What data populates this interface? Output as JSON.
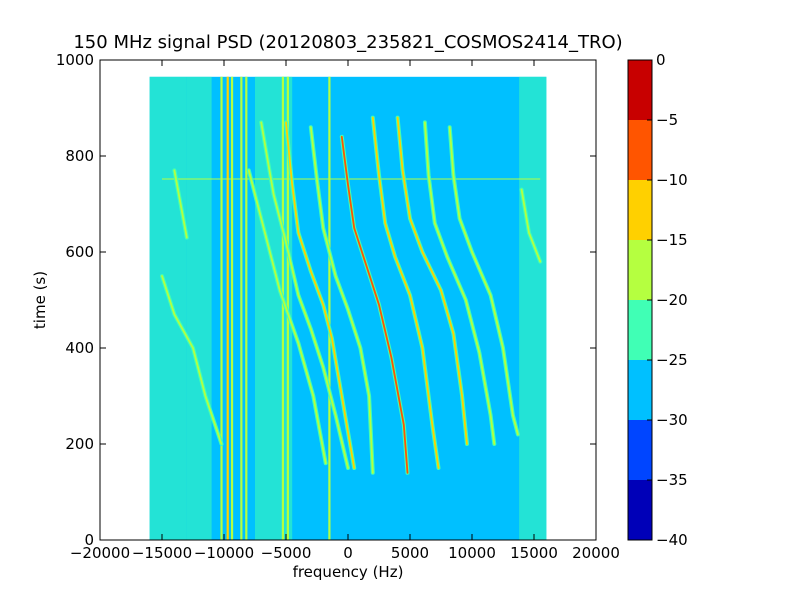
{
  "chart_data": {
    "type": "heatmap",
    "title": "150 MHz signal PSD (20120803_235821_COSMOS2414_TRO)",
    "xlabel": "frequency (Hz)",
    "ylabel": "time (s)",
    "xlim": [
      -20000,
      20000
    ],
    "ylim": [
      0,
      1000
    ],
    "x_ticks": [
      -20000,
      -15000,
      -10000,
      -5000,
      0,
      5000,
      10000,
      15000,
      20000
    ],
    "x_tick_labels": [
      "−20000",
      "−15000",
      "−10000",
      "−5000",
      "0",
      "5000",
      "10000",
      "15000",
      "20000"
    ],
    "y_ticks": [
      0,
      200,
      400,
      600,
      800,
      1000
    ],
    "y_tick_labels": [
      "0",
      "200",
      "400",
      "600",
      "800",
      "1000"
    ],
    "data_extent": {
      "x": [
        -16000,
        16000
      ],
      "y": [
        0,
        965
      ]
    },
    "background_level": -27.5,
    "edge_noise_bands": [
      {
        "x": [
          -16000,
          -13000
        ],
        "level": -22.5
      },
      {
        "x": [
          -13000,
          -11000
        ],
        "level": -24.5
      },
      {
        "x": [
          -7500,
          -4500
        ],
        "level": -24.5
      },
      {
        "x": [
          13800,
          16000
        ],
        "level": -22.5
      }
    ],
    "vertical_lines": [
      {
        "x": -10200,
        "level": -17.5
      },
      {
        "x": -9700,
        "level": -12.5
      },
      {
        "x": -9350,
        "level": -17.5
      },
      {
        "x": -8600,
        "level": -17.5
      },
      {
        "x": -8200,
        "level": -17.5
      },
      {
        "x": -5250,
        "level": -17.5
      },
      {
        "x": -4850,
        "level": -17.5
      },
      {
        "x": -1500,
        "level": -17.5
      }
    ],
    "horizontal_lines": [
      {
        "y": 752,
        "x": [
          -15000,
          15500
        ],
        "level": -17.5
      }
    ],
    "doppler_tracks": [
      {
        "points": [
          [
            -14000,
            770
          ],
          [
            -13000,
            630
          ]
        ],
        "level": -17.5
      },
      {
        "points": [
          [
            -15000,
            550
          ],
          [
            -14000,
            470
          ],
          [
            -12500,
            400
          ],
          [
            -11500,
            300
          ],
          [
            -10200,
            200
          ]
        ],
        "level": -17.5
      },
      {
        "points": [
          [
            -8000,
            770
          ],
          [
            -6500,
            620
          ],
          [
            -5500,
            520
          ],
          [
            -4000,
            410
          ],
          [
            -2800,
            300
          ],
          [
            -1800,
            160
          ]
        ],
        "level": -17.5
      },
      {
        "points": [
          [
            -7000,
            870
          ],
          [
            -6000,
            720
          ],
          [
            -5000,
            620
          ],
          [
            -4000,
            510
          ],
          [
            -3000,
            440
          ],
          [
            -2000,
            360
          ],
          [
            -1000,
            260
          ],
          [
            0,
            150
          ]
        ],
        "level": -17.5
      },
      {
        "points": [
          [
            -5000,
            870
          ],
          [
            -4500,
            740
          ],
          [
            -4000,
            640
          ],
          [
            -3000,
            560
          ],
          [
            -2000,
            490
          ],
          [
            -1300,
            420
          ],
          [
            -500,
            300
          ],
          [
            500,
            150
          ]
        ],
        "level": -12.5
      },
      {
        "points": [
          [
            -3000,
            860
          ],
          [
            -2500,
            750
          ],
          [
            -2000,
            650
          ],
          [
            -1000,
            550
          ],
          [
            0,
            480
          ],
          [
            1000,
            400
          ],
          [
            1700,
            300
          ],
          [
            2000,
            140
          ]
        ],
        "level": -17.5
      },
      {
        "points": [
          [
            -500,
            840
          ],
          [
            0,
            740
          ],
          [
            500,
            650
          ],
          [
            1500,
            570
          ],
          [
            2500,
            490
          ],
          [
            3500,
            380
          ],
          [
            4500,
            240
          ],
          [
            4800,
            140
          ]
        ],
        "level": -7.5
      },
      {
        "points": [
          [
            2000,
            880
          ],
          [
            2500,
            760
          ],
          [
            3000,
            660
          ],
          [
            3800,
            590
          ],
          [
            5000,
            510
          ],
          [
            6000,
            400
          ],
          [
            6800,
            240
          ],
          [
            7300,
            150
          ]
        ],
        "level": -12.5
      },
      {
        "points": [
          [
            4000,
            880
          ],
          [
            4400,
            770
          ],
          [
            5000,
            670
          ],
          [
            6000,
            600
          ],
          [
            7500,
            520
          ],
          [
            8500,
            430
          ],
          [
            9200,
            300
          ],
          [
            9600,
            200
          ]
        ],
        "level": -12.5
      },
      {
        "points": [
          [
            6200,
            870
          ],
          [
            6500,
            760
          ],
          [
            7000,
            660
          ],
          [
            8000,
            590
          ],
          [
            9500,
            500
          ],
          [
            10600,
            390
          ],
          [
            11500,
            260
          ],
          [
            11800,
            200
          ]
        ],
        "level": -17.5
      },
      {
        "points": [
          [
            8200,
            860
          ],
          [
            8500,
            760
          ],
          [
            9000,
            670
          ],
          [
            10000,
            600
          ],
          [
            11500,
            510
          ],
          [
            12500,
            400
          ],
          [
            13300,
            260
          ],
          [
            13700,
            220
          ]
        ],
        "level": -17.5
      },
      {
        "points": [
          [
            14000,
            730
          ],
          [
            14600,
            640
          ],
          [
            15500,
            580
          ]
        ],
        "level": -17.5
      }
    ],
    "colorbar": {
      "range": [
        -40,
        0
      ],
      "ticks": [
        0,
        -5,
        -10,
        -15,
        -20,
        -25,
        -30,
        -35,
        -40
      ],
      "tick_labels": [
        "0",
        "−5",
        "−10",
        "−15",
        "−20",
        "−25",
        "−30",
        "−35",
        "−40"
      ],
      "levels": [
        {
          "from": -40,
          "to": -35,
          "color": "#0000b8"
        },
        {
          "from": -35,
          "to": -30,
          "color": "#0045ff"
        },
        {
          "from": -30,
          "to": -25,
          "color": "#00c0ff"
        },
        {
          "from": -25,
          "to": -20,
          "color": "#40ffb5"
        },
        {
          "from": -20,
          "to": -15,
          "color": "#b5ff40"
        },
        {
          "from": -15,
          "to": -10,
          "color": "#ffd000"
        },
        {
          "from": -10,
          "to": -5,
          "color": "#ff5500"
        },
        {
          "from": -5,
          "to": 0,
          "color": "#c80000"
        }
      ]
    }
  }
}
